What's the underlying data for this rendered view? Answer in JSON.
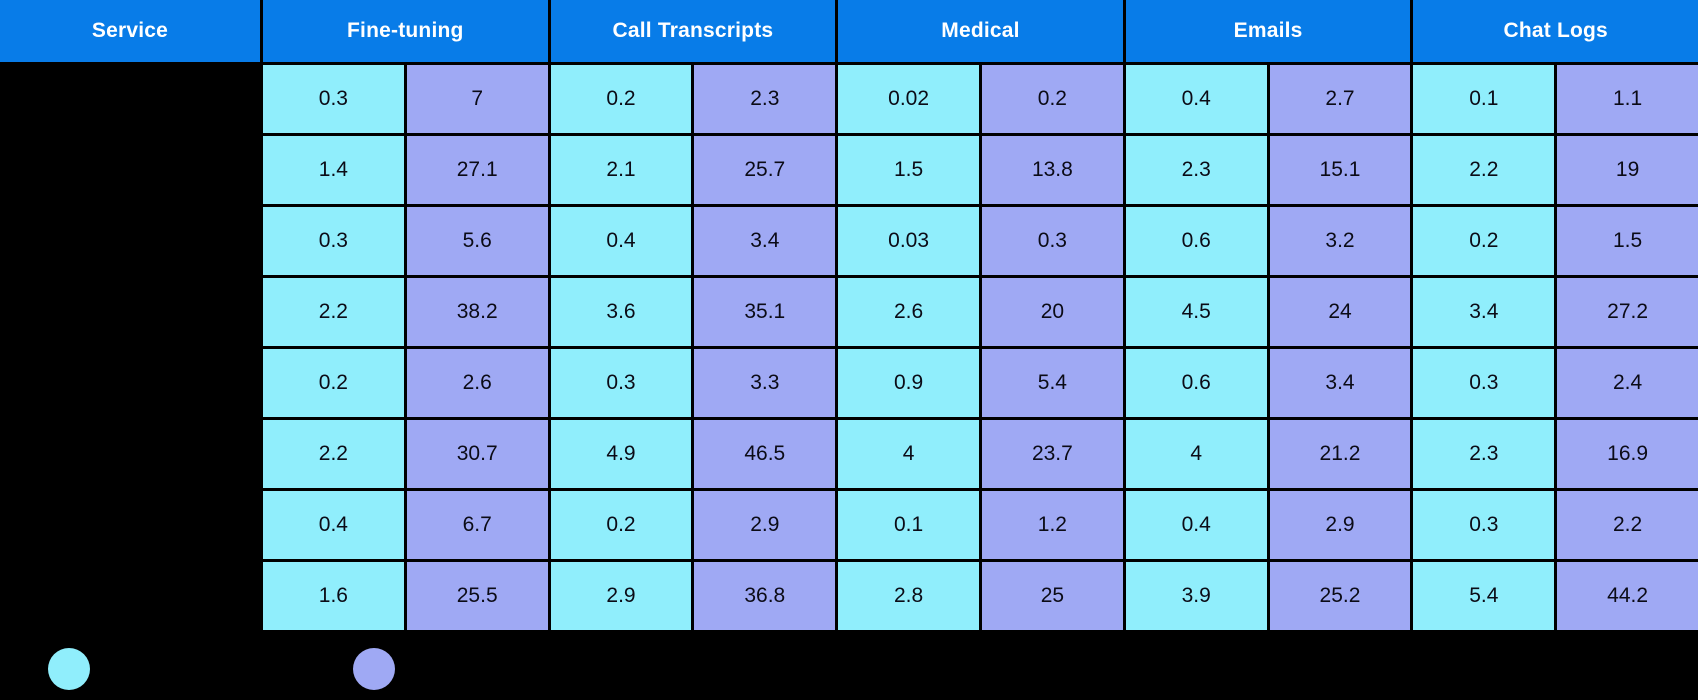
{
  "chart_data": {
    "type": "table",
    "column_groups": [
      "Service",
      "Fine-tuning",
      "Call Transcripts",
      "Medical",
      "Emails",
      "Chat Logs"
    ],
    "sub_columns_per_group": 2,
    "rows": [
      [
        "0.3",
        "7",
        "0.2",
        "2.3",
        "0.02",
        "0.2",
        "0.4",
        "2.7",
        "0.1",
        "1.1"
      ],
      [
        "1.4",
        "27.1",
        "2.1",
        "25.7",
        "1.5",
        "13.8",
        "2.3",
        "15.1",
        "2.2",
        "19"
      ],
      [
        "0.3",
        "5.6",
        "0.4",
        "3.4",
        "0.03",
        "0.3",
        "0.6",
        "3.2",
        "0.2",
        "1.5"
      ],
      [
        "2.2",
        "38.2",
        "3.6",
        "35.1",
        "2.6",
        "20",
        "4.5",
        "24",
        "3.4",
        "27.2"
      ],
      [
        "0.2",
        "2.6",
        "0.3",
        "3.3",
        "0.9",
        "5.4",
        "0.6",
        "3.4",
        "0.3",
        "2.4"
      ],
      [
        "2.2",
        "30.7",
        "4.9",
        "46.5",
        "4",
        "23.7",
        "4",
        "21.2",
        "2.3",
        "16.9"
      ],
      [
        "0.4",
        "6.7",
        "0.2",
        "2.9",
        "0.1",
        "1.2",
        "0.4",
        "2.9",
        "0.3",
        "2.2"
      ],
      [
        "1.6",
        "25.5",
        "2.9",
        "36.8",
        "2.8",
        "25",
        "3.9",
        "25.2",
        "5.4",
        "44.2"
      ]
    ],
    "legend_swatches": [
      "#90EEFC",
      "#9FA9F4"
    ],
    "layout": {
      "grid": "on",
      "legend_position": "bottom-left"
    }
  },
  "colors": {
    "header_blue": "#087CE8",
    "cell_cyan": "#90EEFC",
    "cell_periwinkle": "#9FA9F4",
    "background": "#000000",
    "header_text": "#FFFFFF",
    "cell_text": "#0B0B16"
  }
}
